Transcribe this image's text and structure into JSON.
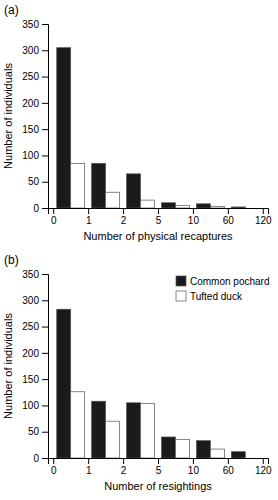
{
  "chart_data": [
    {
      "type": "histogram",
      "title": "(a)",
      "xlabel": "Number of physical recaptures",
      "ylabel": "Number of individuals",
      "bins": [
        0,
        1,
        2,
        5,
        10,
        60,
        120
      ],
      "series": [
        {
          "color": "#1a1a1a",
          "values": [
            305,
            85,
            65,
            10,
            8,
            2
          ]
        },
        {
          "color": "#ffffff",
          "values": [
            85,
            30,
            15,
            5,
            3,
            0
          ]
        }
      ],
      "ylim": [
        0,
        350
      ],
      "yticks": [
        0,
        50,
        100,
        150,
        200,
        250,
        300,
        350
      ]
    },
    {
      "type": "histogram",
      "title": "(b)",
      "xlabel": "Number of resightings",
      "ylabel": "Number of individuals",
      "bins": [
        0,
        1,
        2,
        5,
        10,
        60,
        120
      ],
      "series": [
        {
          "name": "Common pochard",
          "color": "#1a1a1a",
          "values": [
            283,
            108,
            105,
            40,
            33,
            12
          ]
        },
        {
          "name": "Tufted duck",
          "color": "#ffffff",
          "values": [
            126,
            70,
            104,
            35,
            17,
            0
          ]
        }
      ],
      "ylim": [
        0,
        350
      ],
      "yticks": [
        0,
        50,
        100,
        150,
        200,
        250,
        300,
        350
      ],
      "legend": "upper right"
    }
  ]
}
